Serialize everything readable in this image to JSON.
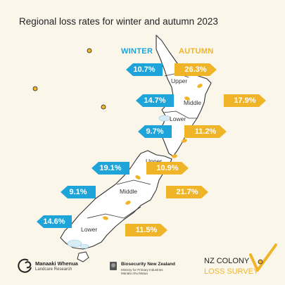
{
  "title": "Regional loss rates for winter and autumn 2023",
  "legend": {
    "winter_label": "WINTER",
    "autumn_label": "AUTUMN",
    "winter_color": "#1ea4d8",
    "autumn_color": "#f0b429"
  },
  "north_island": {
    "upper": {
      "label": "Upper",
      "winter": "10.7%",
      "autumn": "26.3%"
    },
    "middle": {
      "label": "Middle",
      "winter": "14.7%",
      "autumn": "17.9%"
    },
    "lower": {
      "label": "Lower",
      "winter": "9.7%",
      "autumn": "11.2%"
    }
  },
  "south_island": {
    "upper": {
      "label": "Upper",
      "winter": "19.1%",
      "autumn": "10.9%"
    },
    "middle": {
      "label": "Middle",
      "winter": "9.1%",
      "autumn": "21.7%"
    },
    "lower": {
      "label": "Lower",
      "winter": "14.6%",
      "autumn": "11.5%"
    }
  },
  "footer": {
    "mw_name": "Manaaki Whenua",
    "mw_sub": "Landcare Research",
    "bnz_name": "Biosecurity New Zealand",
    "bnz_sub": "Ministry for Primary Industries",
    "bnz_sub2": "Manatū Ahu Matua",
    "survey_line1": "NZ COLONY",
    "survey_line2": "LOSS SURVEY"
  },
  "icons": [
    "bee-icon",
    "leaf-icon",
    "snow-icon",
    "checkmark-icon",
    "crest-icon"
  ]
}
